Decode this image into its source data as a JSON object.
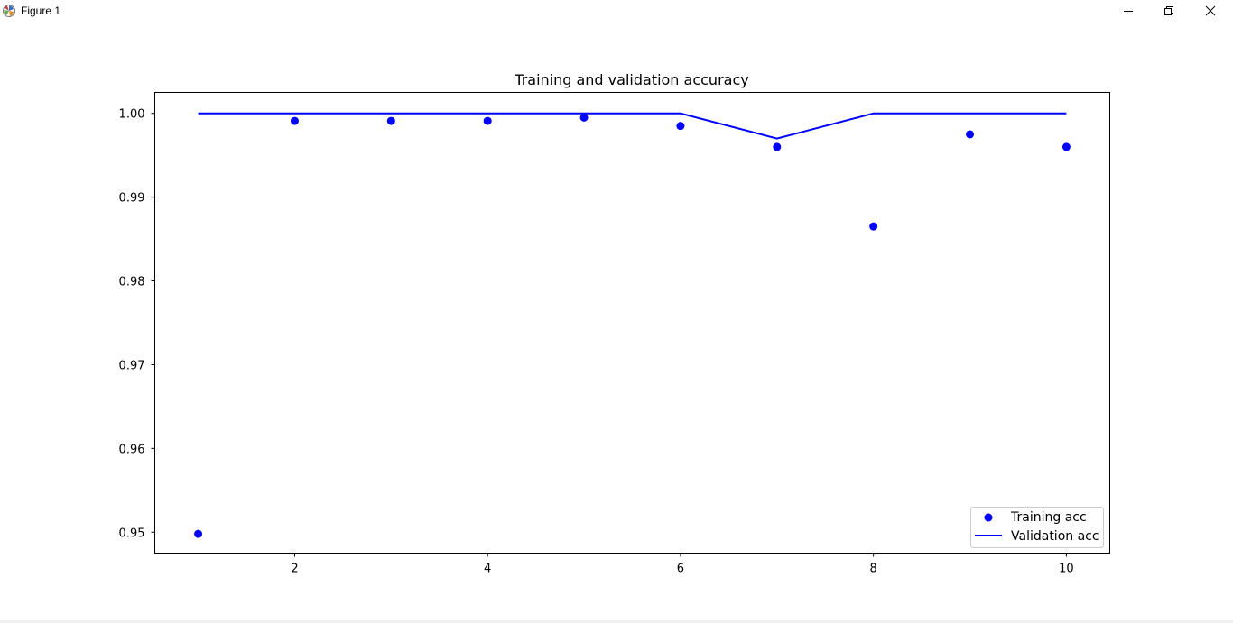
{
  "window": {
    "title": "Figure 1",
    "controls": [
      "minimize-icon",
      "restore-icon",
      "close-icon"
    ]
  },
  "chart_data": {
    "type": "scatter",
    "title": "Training and validation accuracy",
    "xlabel": "",
    "ylabel": "",
    "xlim": [
      0.55,
      10.45
    ],
    "ylim": [
      0.9475,
      1.0025
    ],
    "x_ticks": [
      2,
      4,
      6,
      8,
      10
    ],
    "y_ticks": [
      0.95,
      0.96,
      0.97,
      0.98,
      0.99,
      1.0
    ],
    "x_tick_labels": [
      "2",
      "4",
      "6",
      "8",
      "10"
    ],
    "y_tick_labels": [
      "0.95",
      "0.96",
      "0.97",
      "0.98",
      "0.99",
      "1.00"
    ],
    "grid": false,
    "legend_position": "lower-right",
    "series": [
      {
        "name": "Training acc",
        "style": "markers",
        "color": "#0000ff",
        "x": [
          1,
          2,
          3,
          4,
          5,
          6,
          7,
          8,
          9,
          10
        ],
        "y": [
          0.9498,
          0.9991,
          0.9991,
          0.9991,
          0.9995,
          0.9985,
          0.996,
          0.9865,
          0.9975,
          0.996
        ]
      },
      {
        "name": "Validation acc",
        "style": "line",
        "color": "#0000ff",
        "x": [
          1,
          2,
          3,
          4,
          5,
          6,
          7,
          8,
          9,
          10
        ],
        "y": [
          1.0,
          1.0,
          1.0,
          1.0,
          1.0,
          1.0,
          0.997,
          1.0,
          1.0,
          1.0
        ]
      }
    ]
  }
}
